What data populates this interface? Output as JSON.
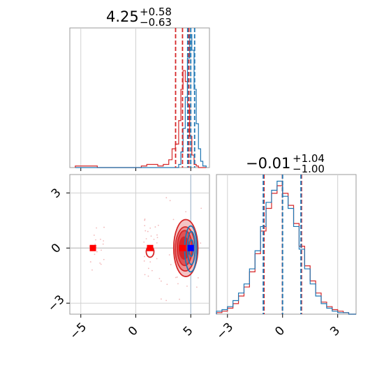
{
  "chart_data": [
    {
      "type": "histogram",
      "panel": "top-left",
      "title": {
        "value": "4.25",
        "plus": "+0.58",
        "minus": "−0.63"
      },
      "xlim": [
        -6.0,
        6.7
      ],
      "grid": true,
      "colors": {
        "red": "#d62728",
        "blue": "#1f77b4"
      },
      "bins": [
        -5.5,
        -4.5,
        -3.5,
        -2.5,
        -1.5,
        -0.5,
        0.5,
        1.0,
        1.5,
        2.0,
        2.5,
        3.0,
        3.3,
        3.6,
        3.9,
        4.1,
        4.3,
        4.5,
        4.7,
        4.9,
        5.1,
        5.3,
        5.5,
        5.7,
        5.9,
        6.1,
        6.4
      ],
      "series": [
        {
          "color": "red",
          "values": [
            0.01,
            0.01,
            0,
            0,
            0,
            0,
            0.01,
            0.02,
            0.02,
            0.01,
            0.02,
            0.05,
            0.12,
            0.15,
            0.3,
            0.5,
            0.62,
            0.55,
            0.4,
            0.2,
            0.08,
            0.02,
            0.01,
            0,
            0,
            0
          ]
        },
        {
          "color": "blue",
          "values": [
            0,
            0,
            0,
            0,
            0,
            0,
            0,
            0,
            0,
            0,
            0,
            0,
            0,
            0,
            0.02,
            0.1,
            0.25,
            0.45,
            0.7,
            0.85,
            0.75,
            0.5,
            0.28,
            0.12,
            0.04,
            0.01
          ]
        }
      ],
      "quantile_lines": [
        {
          "color": "red",
          "values": [
            3.62,
            4.25,
            4.83
          ]
        },
        {
          "color": "blue",
          "values": [
            4.72,
            5.0,
            5.35
          ]
        }
      ]
    },
    {
      "type": "contour",
      "panel": "bottom-left",
      "xlim": [
        -6.0,
        6.7
      ],
      "ylim": [
        -3.6,
        4.0
      ],
      "xticks": [
        "−5",
        "0",
        "5"
      ],
      "yticks": [
        "−3",
        "0",
        "3"
      ],
      "grid": true,
      "red_contours": [
        {
          "cx": 4.55,
          "cy": 0.0,
          "rx": 2.2,
          "ry": 3.1,
          "fill": "#f4c4c5"
        },
        {
          "cx": 4.5,
          "cy": -0.05,
          "rx": 1.8,
          "ry": 2.4,
          "fill": "#ec8e8f"
        },
        {
          "cx": 4.45,
          "cy": 0.0,
          "rx": 1.35,
          "ry": 1.9,
          "fill": "#df5355"
        },
        {
          "cx": 4.4,
          "cy": 0.0,
          "rx": 0.9,
          "ry": 1.2,
          "fill": "#d62728"
        }
      ],
      "red_small_contour": {
        "cx": 1.3,
        "cy": -0.2,
        "rx": 0.35,
        "ry": 0.3
      },
      "blue_contours": [
        {
          "cx": 5.0,
          "cy": -0.05,
          "rx": 1.1,
          "ry": 2.5
        },
        {
          "cx": 5.05,
          "cy": 0.0,
          "rx": 0.7,
          "ry": 1.8
        },
        {
          "cx": 5.05,
          "cy": 0.0,
          "rx": 0.4,
          "ry": 0.9
        }
      ],
      "markers": [
        {
          "x": -3.9,
          "y": 0.0,
          "color": "red"
        },
        {
          "x": 1.3,
          "y": 0.0,
          "color": "red"
        },
        {
          "x": 4.25,
          "y": 0.0,
          "color": "red"
        },
        {
          "x": 5.0,
          "y": 0.0,
          "color": "blue"
        }
      ],
      "guide_lines": {
        "x": 5.0,
        "y": 0.0
      }
    },
    {
      "type": "histogram",
      "panel": "bottom-right",
      "title": {
        "value": "−0.01",
        "plus": "+1.04",
        "minus": "−1.00"
      },
      "xlim": [
        -3.6,
        4.0
      ],
      "xticks": [
        "−3",
        "0",
        "3"
      ],
      "grid": true,
      "bins": [
        -3.6,
        -3.3,
        -3.0,
        -2.7,
        -2.4,
        -2.1,
        -1.8,
        -1.5,
        -1.2,
        -0.9,
        -0.6,
        -0.3,
        0.0,
        0.3,
        0.6,
        0.9,
        1.2,
        1.5,
        1.8,
        2.1,
        2.4,
        2.7,
        3.0,
        3.3,
        3.6,
        4.0
      ],
      "series": [
        {
          "color": "red",
          "values": [
            0.01,
            0.02,
            0.04,
            0.07,
            0.12,
            0.18,
            0.28,
            0.4,
            0.55,
            0.7,
            0.8,
            0.85,
            0.8,
            0.72,
            0.6,
            0.45,
            0.32,
            0.22,
            0.14,
            0.08,
            0.05,
            0.03,
            0.02,
            0.01,
            0.0
          ]
        },
        {
          "color": "blue",
          "values": [
            0.02,
            0.03,
            0.05,
            0.09,
            0.14,
            0.2,
            0.3,
            0.42,
            0.58,
            0.74,
            0.82,
            0.88,
            0.78,
            0.7,
            0.58,
            0.43,
            0.3,
            0.2,
            0.12,
            0.07,
            0.04,
            0.02,
            0.01,
            0.01,
            0.0
          ]
        }
      ],
      "quantile_lines": [
        {
          "color": "red",
          "values": [
            -1.01,
            -0.01,
            1.03
          ]
        },
        {
          "color": "blue",
          "values": [
            -1.05,
            0.0,
            1.0
          ]
        }
      ]
    }
  ]
}
